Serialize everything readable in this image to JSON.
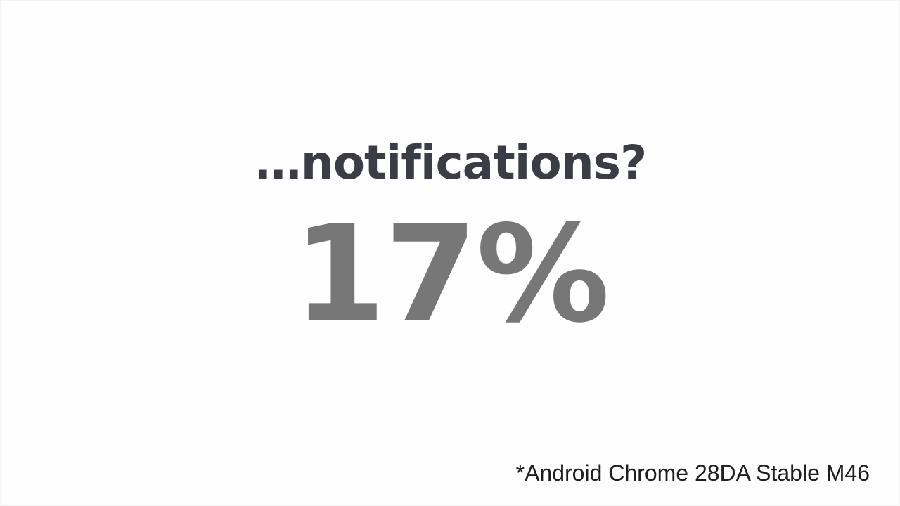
{
  "slide": {
    "heading": "…notifications?",
    "stat": "17%",
    "footnote": "*Android Chrome 28DA Stable M46"
  },
  "colors": {
    "heading": "#3a3d45",
    "stat": "#777777",
    "footnote": "#1e1e1e",
    "background": "#fefefe"
  }
}
